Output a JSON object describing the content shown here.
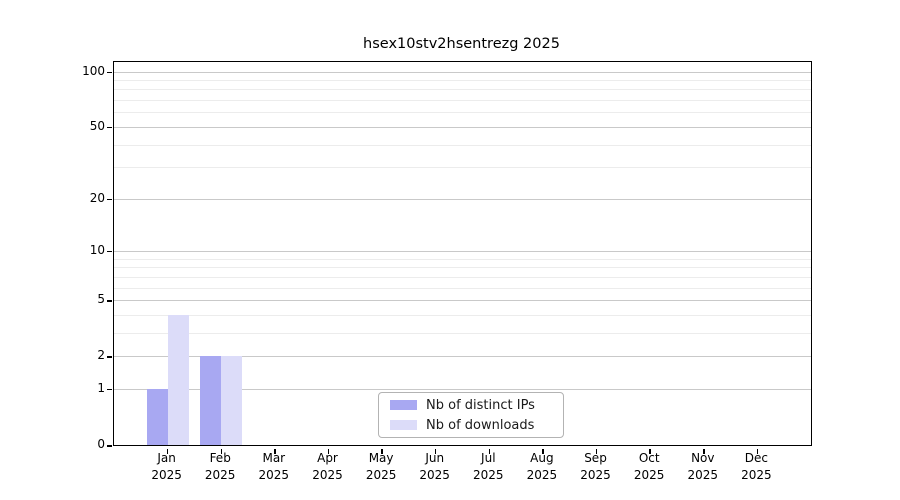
{
  "chart_data": {
    "type": "bar",
    "title": "hsex10stv2hsentrezg 2025",
    "x_axis": {
      "months": [
        "Jan",
        "Feb",
        "Mar",
        "Apr",
        "May",
        "Jun",
        "Jul",
        "Aug",
        "Sep",
        "Oct",
        "Nov",
        "Dec"
      ],
      "year": "2025"
    },
    "y_axis": {
      "scale": "log1p",
      "major_ticks": [
        0,
        1,
        2,
        5,
        10,
        20,
        50,
        100
      ],
      "minor_ticks": [
        3,
        4,
        6,
        7,
        8,
        9,
        30,
        40,
        60,
        70,
        80,
        90
      ],
      "range_max": 100
    },
    "series": [
      {
        "name": "Nb of distinct IPs",
        "color": "#a8a8f2",
        "values": [
          1,
          2,
          0,
          0,
          0,
          0,
          0,
          0,
          0,
          0,
          0,
          0
        ]
      },
      {
        "name": "Nb of downloads",
        "color": "#dcdcf9",
        "values": [
          4,
          2,
          0,
          0,
          0,
          0,
          0,
          0,
          0,
          0,
          0,
          0
        ]
      }
    ],
    "legend": {
      "position": "lower center"
    },
    "grid": {
      "major_color": "#c9c9c9",
      "minor_color": "#ececec",
      "vertical": false
    }
  }
}
